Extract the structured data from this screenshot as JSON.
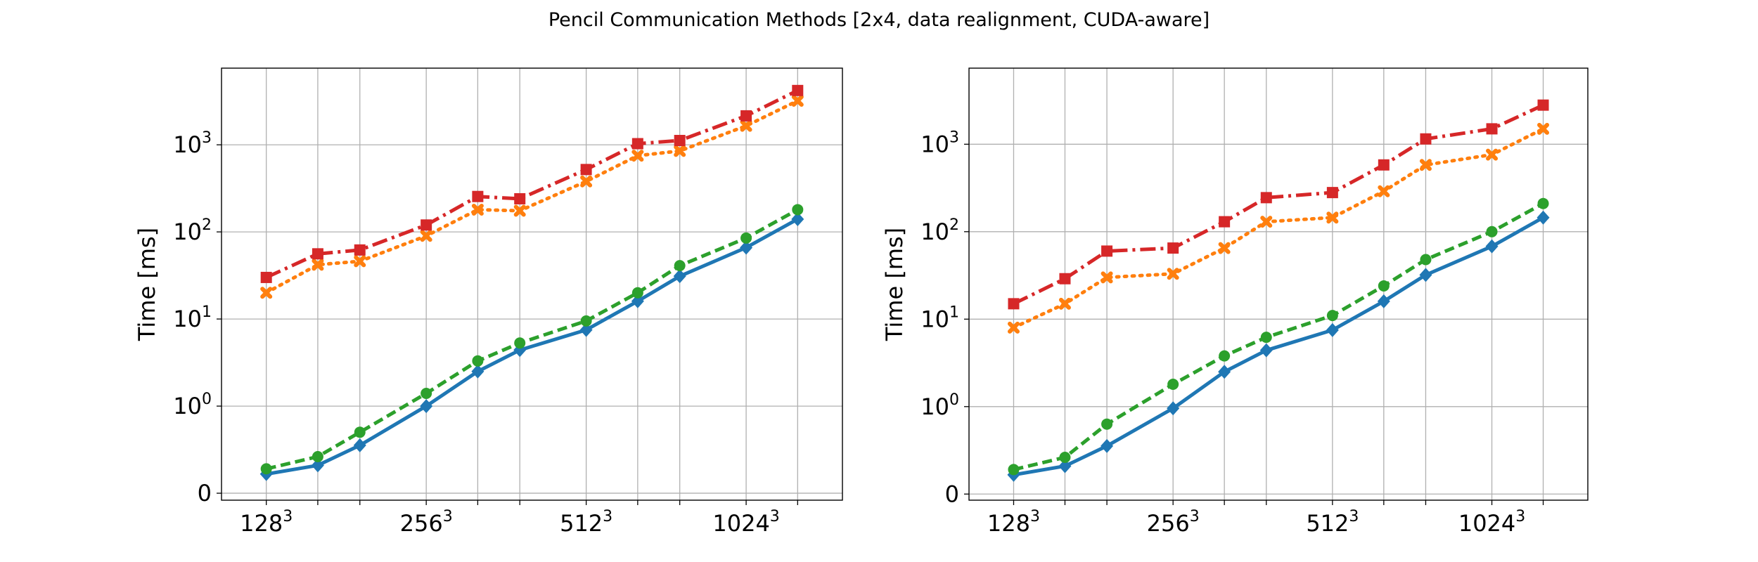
{
  "title": "Pencil Communication Methods [2x4, data realignment, CUDA-aware]",
  "colors": {
    "series": [
      "#1f77b4",
      "#ff7f0e",
      "#2ca02c",
      "#d62728"
    ],
    "grid": "#b0b0b0",
    "axis": "#000000"
  },
  "chart_data": [
    {
      "type": "line",
      "ylabel": "Time [ms]",
      "yscale": "symlog",
      "x": [
        128,
        160,
        192,
        256,
        320,
        384,
        512,
        640,
        768,
        1024,
        1280
      ],
      "xtick_labels": [
        {
          "base": "128",
          "exp": "3",
          "at": 128
        },
        {
          "base": "256",
          "exp": "3",
          "at": 256
        },
        {
          "base": "512",
          "exp": "3",
          "at": 512
        },
        {
          "base": "1024",
          "exp": "3",
          "at": 1024
        }
      ],
      "ytick_labels": [
        {
          "base": "0",
          "exp": "",
          "at": 0
        },
        {
          "base": "10",
          "exp": "0",
          "at": 1
        },
        {
          "base": "10",
          "exp": "1",
          "at": 10
        },
        {
          "base": "10",
          "exp": "2",
          "at": 100
        },
        {
          "base": "10",
          "exp": "3",
          "at": 1000
        }
      ],
      "grid": true,
      "series": [
        {
          "color": "#1f77b4",
          "marker": "diamond",
          "linestyle": "solid",
          "values": [
            0.22,
            0.32,
            0.55,
            1.0,
            2.5,
            4.4,
            7.5,
            16,
            31,
            66,
            140
          ]
        },
        {
          "color": "#ff7f0e",
          "marker": "x",
          "linestyle": "dotted",
          "values": [
            20,
            42,
            46,
            90,
            180,
            175,
            380,
            750,
            850,
            1650,
            3200
          ]
        },
        {
          "color": "#2ca02c",
          "marker": "circle",
          "linestyle": "dashed",
          "values": [
            0.28,
            0.42,
            0.7,
            1.4,
            3.3,
            5.3,
            9.5,
            20,
            41,
            85,
            180
          ]
        },
        {
          "color": "#d62728",
          "marker": "square",
          "linestyle": "dashdot",
          "values": [
            30,
            56,
            62,
            120,
            255,
            240,
            520,
            1030,
            1120,
            2150,
            4200
          ]
        }
      ]
    },
    {
      "type": "line",
      "ylabel": "Time [ms]",
      "yscale": "symlog",
      "x": [
        128,
        160,
        192,
        256,
        320,
        384,
        512,
        640,
        768,
        1024,
        1280
      ],
      "xtick_labels": [
        {
          "base": "128",
          "exp": "3",
          "at": 128
        },
        {
          "base": "256",
          "exp": "3",
          "at": 256
        },
        {
          "base": "512",
          "exp": "3",
          "at": 512
        },
        {
          "base": "1024",
          "exp": "3",
          "at": 1024
        }
      ],
      "ytick_labels": [
        {
          "base": "0",
          "exp": "",
          "at": 0
        },
        {
          "base": "10",
          "exp": "0",
          "at": 1
        },
        {
          "base": "10",
          "exp": "1",
          "at": 10
        },
        {
          "base": "10",
          "exp": "2",
          "at": 100
        },
        {
          "base": "10",
          "exp": "3",
          "at": 1000
        }
      ],
      "grid": true,
      "series": [
        {
          "color": "#1f77b4",
          "marker": "diamond",
          "linestyle": "solid",
          "values": [
            0.22,
            0.32,
            0.55,
            0.98,
            2.5,
            4.4,
            7.5,
            16,
            32,
            68,
            145
          ]
        },
        {
          "color": "#ff7f0e",
          "marker": "x",
          "linestyle": "dotted",
          "values": [
            8,
            15,
            30,
            33,
            65,
            130,
            145,
            290,
            580,
            760,
            1500
          ]
        },
        {
          "color": "#2ca02c",
          "marker": "circle",
          "linestyle": "dashed",
          "values": [
            0.28,
            0.42,
            0.8,
            1.8,
            3.8,
            6.2,
            11,
            24,
            48,
            100,
            210
          ]
        },
        {
          "color": "#d62728",
          "marker": "square",
          "linestyle": "dashdot",
          "values": [
            15,
            29,
            60,
            65,
            130,
            245,
            280,
            580,
            1150,
            1500,
            2800
          ]
        }
      ]
    }
  ]
}
